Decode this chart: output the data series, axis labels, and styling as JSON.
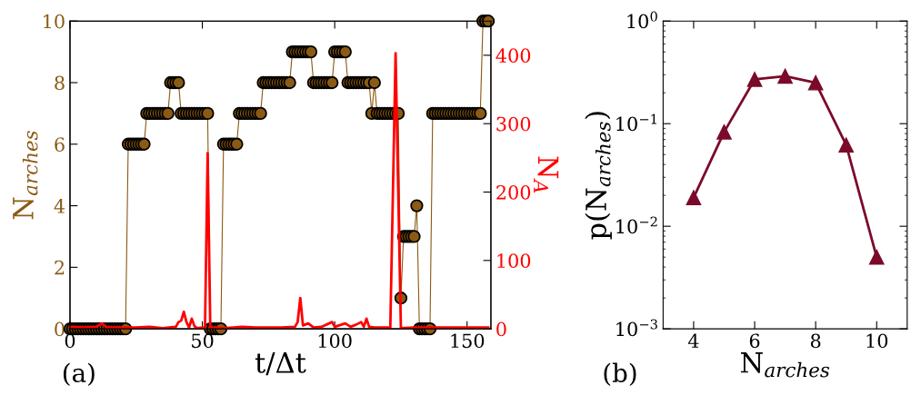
{
  "chart_data": [
    {
      "type": "line",
      "xlabel": "t/Δt",
      "ylabel": "N$_{arches}$",
      "y2label": "N$_{A}$",
      "annotations": [
        "(a)"
      ],
      "xlim": [
        0,
        159
      ],
      "xticks": [
        0,
        50,
        100,
        150
      ],
      "ylim": [
        0,
        10
      ],
      "yticks": [
        0,
        2,
        4,
        6,
        8,
        10
      ],
      "y2lim": [
        0,
        450
      ],
      "y2ticks": [
        0,
        100,
        200,
        300,
        400
      ],
      "grid": false,
      "legend": false,
      "series": [
        {
          "marker": "circle",
          "color": "#8b5a14",
          "x": [
            0,
            1,
            2,
            3,
            4,
            5,
            6,
            7,
            8,
            9,
            10,
            11,
            12,
            13,
            14,
            15,
            16,
            17,
            18,
            19,
            20,
            21,
            22,
            23,
            24,
            25,
            26,
            27,
            28,
            29,
            30,
            31,
            32,
            33,
            34,
            35,
            36,
            37,
            38,
            39,
            40,
            41,
            42,
            43,
            44,
            45,
            46,
            47,
            48,
            49,
            50,
            51,
            52,
            53,
            54,
            55,
            56,
            57,
            58,
            59,
            60,
            61,
            62,
            63,
            64,
            65,
            66,
            67,
            68,
            69,
            70,
            71,
            72,
            73,
            74,
            75,
            76,
            77,
            78,
            79,
            80,
            81,
            82,
            83,
            84,
            85,
            86,
            87,
            88,
            89,
            90,
            91,
            92,
            93,
            94,
            95,
            96,
            97,
            98,
            99,
            100,
            101,
            102,
            103,
            104,
            105,
            106,
            107,
            108,
            109,
            110,
            111,
            112,
            113,
            114,
            115,
            116,
            117,
            118,
            119,
            120,
            121,
            122,
            123,
            124,
            125,
            126,
            127,
            128,
            129,
            130,
            131,
            132,
            133,
            134,
            135,
            136,
            137,
            138,
            139,
            140,
            141,
            142,
            143,
            144,
            145,
            146,
            147,
            148,
            149,
            150,
            151,
            152,
            153,
            154,
            155,
            156,
            157,
            158
          ],
          "values": [
            0,
            0,
            0,
            0,
            0,
            0,
            0,
            0,
            0,
            0,
            0,
            0,
            0,
            0,
            0,
            0,
            0,
            0,
            0,
            0,
            0,
            0,
            6,
            6,
            6,
            6,
            6,
            6,
            6,
            7,
            7,
            7,
            7,
            7,
            7,
            7,
            7,
            7,
            8,
            8,
            8,
            8,
            7,
            7,
            7,
            7,
            7,
            7,
            7,
            7,
            7,
            7,
            7,
            0,
            0,
            0,
            0,
            0,
            6,
            6,
            6,
            6,
            6,
            6,
            7,
            7,
            7,
            7,
            7,
            7,
            7,
            7,
            7,
            8,
            8,
            8,
            8,
            8,
            8,
            8,
            8,
            8,
            8,
            8,
            9,
            9,
            9,
            9,
            9,
            9,
            9,
            9,
            8,
            8,
            8,
            8,
            8,
            8,
            8,
            8,
            9,
            9,
            9,
            9,
            9,
            8,
            8,
            8,
            8,
            8,
            8,
            8,
            8,
            8,
            7,
            8,
            7,
            7,
            7,
            7,
            7,
            7,
            7,
            7,
            7,
            1,
            3,
            3,
            3,
            3,
            3,
            4,
            0,
            0,
            0,
            0,
            0,
            7,
            7,
            7,
            7,
            7,
            7,
            7,
            7,
            7,
            7,
            7,
            7,
            7,
            7,
            7,
            7,
            7,
            7,
            7,
            10,
            10,
            10
          ]
        },
        {
          "axis": "y2",
          "marker": "none",
          "color": "#ff0000",
          "x": [
            0,
            5,
            10,
            12,
            14,
            20,
            25,
            30,
            35,
            40,
            41,
            42,
            43,
            44,
            45,
            46,
            47,
            48,
            50,
            51,
            52,
            53,
            54,
            58,
            65,
            70,
            80,
            85,
            86,
            87,
            88,
            90,
            92,
            95,
            99,
            100,
            104,
            106,
            108,
            110,
            111,
            112,
            113,
            115,
            120,
            121,
            123,
            125,
            130,
            140,
            150,
            158
          ],
          "values": [
            3,
            2,
            3,
            8,
            2,
            2,
            2,
            3,
            1,
            3,
            10,
            12,
            25,
            10,
            2,
            15,
            4,
            1,
            2,
            1,
            257,
            1,
            2,
            1,
            3,
            2,
            2,
            3,
            10,
            45,
            5,
            8,
            2,
            3,
            10,
            3,
            8,
            3,
            6,
            10,
            3,
            15,
            3,
            2,
            2,
            1,
            403,
            1,
            2,
            2,
            2,
            2
          ]
        }
      ]
    },
    {
      "type": "line",
      "xlabel": "N$_{arches}$",
      "ylabel": "p(N$_{arches}$)",
      "annotations": [
        "(b)"
      ],
      "log": "y",
      "xlim": [
        3,
        11
      ],
      "xticks": [
        4,
        6,
        8,
        10
      ],
      "ylim": [
        0.001,
        1
      ],
      "yticks": [
        {
          "value": 0.001,
          "label": "10$^{−3}$"
        },
        {
          "value": 0.01,
          "label": "10$^{−2}$"
        },
        {
          "value": 0.1,
          "label": "10$^{−1}$"
        },
        {
          "value": 1,
          "label": "10$^{0}$"
        }
      ],
      "grid": false,
      "legend": false,
      "series": [
        {
          "marker": "triangle",
          "color": "#7b0a2a",
          "x": [
            4,
            5,
            6,
            7,
            8,
            9,
            10
          ],
          "values": [
            0.019,
            0.083,
            0.27,
            0.29,
            0.25,
            0.062,
            0.005
          ]
        }
      ]
    }
  ]
}
